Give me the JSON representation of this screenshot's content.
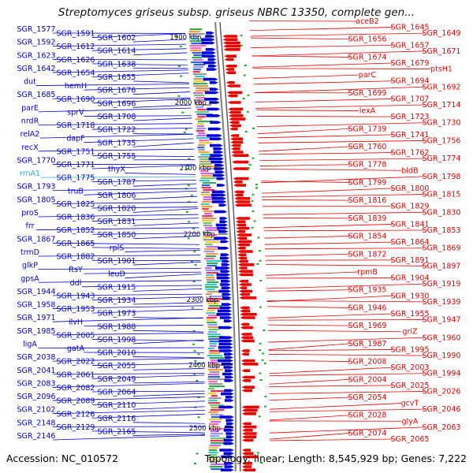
{
  "header": {
    "title": "Streptomyces griseus subsp. griseus NBRC 13350, complete gen..."
  },
  "footer": {
    "accession": "Accession: NC_010572",
    "topology": "Topology: linear; Length: 8,545,929 bp; Genes: 7,222"
  },
  "colors": {
    "forward_strand": "#0000dd",
    "reverse_strand": "#ee0000",
    "rna_label": "#33aadd",
    "backbone": "#888888",
    "ruler_tick": "#111111"
  },
  "ruler": [
    {
      "label": "1900 kbp"
    },
    {
      "label": "2000 kbp"
    },
    {
      "label": "2100 kbp"
    },
    {
      "label": "2200 kbp"
    },
    {
      "label": "2300 kbp"
    },
    {
      "label": "2400 kbp"
    },
    {
      "label": "2500 kbp"
    }
  ],
  "left_labels": [
    "SGR_1577",
    "SGR_1591",
    "SGR_1602",
    "SGR_1592",
    "SGR_1612",
    "SGR_1614",
    "SGR_1623",
    "SGR_1626",
    "SGR_1638",
    "SGR_1642",
    "SGR_1654",
    "SGR_1655",
    "dut",
    "hemH",
    "SGR_1676",
    "SGR_1685",
    "SGR_1690",
    "SGR_1696",
    "parE",
    "sprV",
    "SGR_1708",
    "nrdR",
    "SGR_1718",
    "SGR_1722",
    "relA2",
    "dapF",
    "SGR_1735",
    "recX",
    "SGR_1751",
    "SGR_1755",
    "SGR_1770",
    "SGR_1771",
    "thyX",
    "rrnA1",
    "SGR_1775",
    "SGR_1787",
    "SGR_1793",
    "truB",
    "SGR_1806",
    "SGR_1805",
    "SGR_1825",
    "SGR_1820",
    "proS",
    "SGR_1836",
    "SGR_1831",
    "frr",
    "SGR_1852",
    "SGR_1850",
    "SGR_1867",
    "SGR_1865",
    "rplS",
    "trmD",
    "SGR_1882",
    "SGR_1901",
    "glkP",
    "ftsY",
    "leuD",
    "gpsA",
    "ddl",
    "SGR_1915",
    "SGR_1944",
    "SGR_1943",
    "SGR_1934",
    "SGR_1958",
    "SGR_1953",
    "SGR_1973",
    "SGR_1971",
    "ilvH",
    "SGR_1988",
    "SGR_1985",
    "SGR_2005",
    "SGR_1998",
    "ligA",
    "gatA",
    "SGR_2010",
    "SGR_2038",
    "SGR_2022",
    "SGR_2055",
    "SGR_2041",
    "SGR_2061",
    "SGR_2049",
    "SGR_2083",
    "SGR_2082",
    "SGR_2064",
    "SGR_2096",
    "SGR_2089",
    "SGR_2110",
    "SGR_2102",
    "SGR_2126",
    "SGR_2116",
    "SGR_2148",
    "SGR_2129",
    "SGR_2165",
    "SGR_2146"
  ],
  "right_labels": [
    "aceB2",
    "SGR_1645",
    "SGR_1649",
    "SGR_1656",
    "SGR_1657",
    "SGR_1671",
    "SGR_1674",
    "SGR_1679",
    "ptsH1",
    "parC",
    "SGR_1694",
    "SGR_1692",
    "SGR_1699",
    "SGR_1707",
    "SGR_1714",
    "lexA",
    "SGR_1723",
    "SGR_1730",
    "SGR_1739",
    "SGR_1741",
    "SGR_1756",
    "SGR_1760",
    "SGR_1762",
    "SGR_1774",
    "SGR_1778",
    "bldB",
    "SGR_1798",
    "SGR_1799",
    "SGR_1800",
    "SGR_1815",
    "SGR_1816",
    "SGR_1829",
    "SGR_1830",
    "SGR_1839",
    "SGR_1841",
    "SGR_1853",
    "SGR_1854",
    "SGR_1864",
    "SGR_1869",
    "SGR_1872",
    "SGR_1891",
    "SGR_1897",
    "rpmB",
    "SGR_1904",
    "SGR_1919",
    "SGR_1935",
    "SGR_1930",
    "SGR_1939",
    "SGR_1946",
    "SGR_1955",
    "SGR_1947",
    "SGR_1969",
    "griZ",
    "SGR_1960",
    "SGR_1987",
    "SGR_1995",
    "SGR_1990",
    "SGR_2008",
    "SGR_2003",
    "SGR_1994",
    "SGR_2004",
    "SGR_2025",
    "SGR_2026",
    "SGR_2054",
    "gcvT",
    "SGR_2046",
    "SGR_2028",
    "glyA",
    "SGR_2063",
    "SGR_2074",
    "SGR_2065"
  ]
}
